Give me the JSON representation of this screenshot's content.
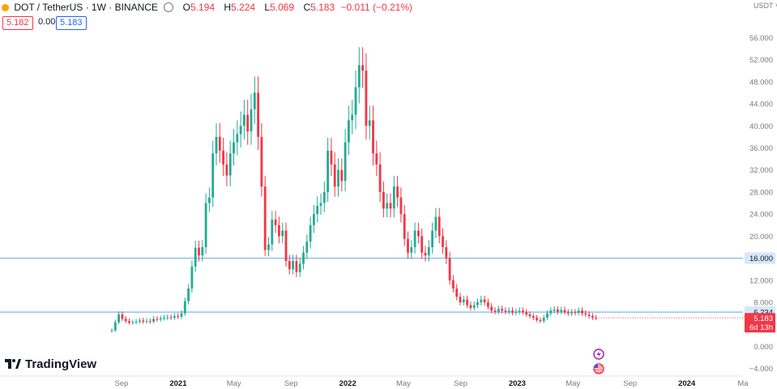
{
  "header": {
    "symbol": "DOT / TetherUS · 1W · BINANCE",
    "open_label": "O",
    "open": "5.194",
    "high_label": "H",
    "high": "5.224",
    "low_label": "L",
    "low": "5.069",
    "close_label": "C",
    "close": "5.183",
    "change": "−0.011 (−0.21%)",
    "bid": "5.182",
    "spread": "0.001",
    "ask": "5.183"
  },
  "branding": {
    "logo_text": "TradingView"
  },
  "colors": {
    "up": "#22ab94",
    "down": "#f23645",
    "line": "#90bff9",
    "axis_text": "#787b86"
  },
  "chart_data": {
    "type": "candlestick",
    "currency_label": "USDT",
    "y_range": [
      -6,
      58
    ],
    "y_ticks": [
      "56.000",
      "52.000",
      "48.000",
      "44.000",
      "40.000",
      "36.000",
      "32.000",
      "28.000",
      "24.000",
      "20.000",
      "16.000",
      "12.000",
      "8.000",
      "4.000",
      "0.000",
      "−4.000"
    ],
    "y_tick_values": [
      56,
      52,
      48,
      44,
      40,
      36,
      32,
      28,
      24,
      20,
      16,
      12,
      8,
      4,
      0,
      -4
    ],
    "x_ticks": [
      "Sep",
      "2021",
      "May",
      "Sep",
      "2022",
      "May",
      "Sep",
      "2023",
      "May",
      "Sep",
      "2024",
      "Ma"
    ],
    "x_tick_dates": [
      "2020-09-01",
      "2021-01-01",
      "2021-05-01",
      "2021-09-01",
      "2022-01-01",
      "2022-05-01",
      "2022-09-01",
      "2023-01-01",
      "2023-05-01",
      "2023-09-01",
      "2024-01-01",
      "2024-05-01"
    ],
    "horizontal_lines": [
      {
        "value": 16.0,
        "label": "16.000"
      },
      {
        "value": 6.234,
        "label": "6.234"
      }
    ],
    "last_price": {
      "value": 5.183,
      "label": "5.183",
      "countdown": "6d 13h"
    },
    "candles_weekly_close": [
      2.9,
      4.4,
      5.8,
      5.0,
      4.6,
      4.3,
      4.4,
      4.5,
      4.7,
      4.5,
      4.6,
      4.5,
      5.0,
      4.9,
      5.1,
      5.2,
      5.3,
      5.2,
      5.5,
      5.4,
      6.0,
      8.2,
      10.5,
      14.5,
      17.9,
      16.5,
      18.0,
      26.0,
      27.0,
      35.0,
      38.0,
      35.5,
      33.0,
      31.0,
      35.0,
      37.0,
      38.5,
      40.0,
      42.0,
      39.0,
      43.0,
      46.0,
      38.0,
      29.0,
      17.5,
      18.5,
      23.0,
      22.0,
      20.0,
      21.0,
      15.5,
      14.0,
      15.5,
      13.5,
      15.0,
      17.0,
      19.0,
      22.0,
      24.0,
      25.5,
      26.0,
      28.0,
      35.5,
      33.0,
      29.0,
      32.0,
      30.0,
      37.0,
      41.0,
      42.0,
      47.0,
      51.0,
      50.0,
      40.0,
      41.0,
      35.0,
      33.0,
      28.0,
      25.0,
      26.0,
      25.0,
      29.0,
      27.0,
      24.0,
      19.5,
      17.0,
      18.0,
      21.0,
      20.0,
      17.0,
      16.5,
      18.0,
      21.0,
      23.5,
      20.0,
      18.0,
      16.0,
      12.0,
      10.5,
      9.0,
      8.0,
      8.5,
      7.5,
      7.0,
      7.5,
      8.0,
      8.5,
      8.0,
      7.2,
      6.5,
      6.3,
      6.8,
      6.5,
      6.3,
      6.5,
      6.1,
      6.3,
      6.5,
      6.2,
      5.8,
      5.5,
      5.2,
      4.8,
      4.6,
      5.2,
      6.0,
      6.5,
      6.7,
      6.3,
      6.6,
      6.2,
      6.0,
      6.2,
      6.1,
      6.5,
      6.0,
      5.8,
      5.5,
      5.2,
      5.18
    ]
  }
}
